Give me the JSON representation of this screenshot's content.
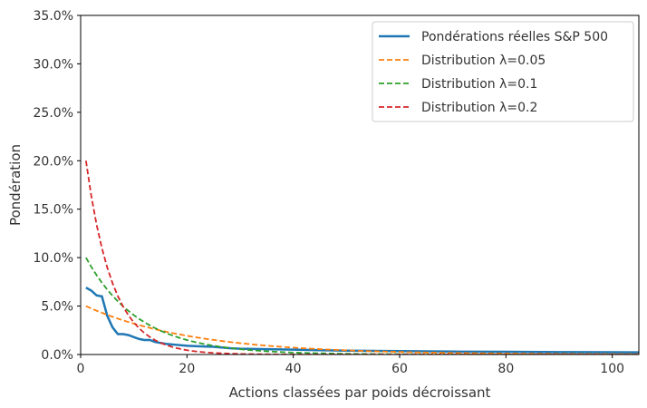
{
  "chart_data": {
    "type": "line",
    "xlabel": "Actions classées par poids décroissant",
    "ylabel": "Pondération",
    "xlim": [
      0,
      105
    ],
    "ylim": [
      0,
      0.35
    ],
    "x_ticks": [
      0,
      20,
      40,
      60,
      80,
      100
    ],
    "y_ticks": [
      0,
      0.05,
      0.1,
      0.15,
      0.2,
      0.25,
      0.3,
      0.35
    ],
    "y_tick_labels": [
      "0.0%",
      "5.0%",
      "10.0%",
      "15.0%",
      "20.0%",
      "25.0%",
      "30.0%",
      "35.0%"
    ],
    "grid": false,
    "legend_position": "top-right",
    "series": [
      {
        "name": "Pondérations réelles S&P 500",
        "color": "#1f77b4",
        "style": "solid",
        "points": [
          [
            1,
            0.069
          ],
          [
            2,
            0.066
          ],
          [
            3,
            0.061
          ],
          [
            4,
            0.06
          ],
          [
            5,
            0.04
          ],
          [
            6,
            0.028
          ],
          [
            7,
            0.021
          ],
          [
            8,
            0.021
          ],
          [
            9,
            0.02
          ],
          [
            10,
            0.018
          ],
          [
            11,
            0.016
          ],
          [
            12,
            0.015
          ],
          [
            13,
            0.015
          ],
          [
            14,
            0.013
          ],
          [
            15,
            0.012
          ],
          [
            16,
            0.011
          ],
          [
            18,
            0.01
          ],
          [
            20,
            0.009
          ],
          [
            22,
            0.0085
          ],
          [
            25,
            0.008
          ],
          [
            28,
            0.0065
          ],
          [
            30,
            0.006
          ],
          [
            35,
            0.0055
          ],
          [
            40,
            0.005
          ],
          [
            45,
            0.0045
          ],
          [
            50,
            0.004
          ],
          [
            60,
            0.0035
          ],
          [
            70,
            0.003
          ],
          [
            80,
            0.0028
          ],
          [
            90,
            0.0025
          ],
          [
            100,
            0.0023
          ],
          [
            105,
            0.0022
          ]
        ]
      },
      {
        "name": "Distribution λ=0.05",
        "color": "#ff7f0e",
        "style": "dashed",
        "lambda": 0.05,
        "x_range": [
          1,
          105
        ]
      },
      {
        "name": "Distribution λ=0.1",
        "color": "#2ca02c",
        "style": "dashed",
        "lambda": 0.1,
        "x_range": [
          1,
          105
        ]
      },
      {
        "name": "Distribution λ=0.2",
        "color": "#d62728",
        "style": "dashed",
        "lambda": 0.2,
        "x_range": [
          1,
          105
        ]
      }
    ]
  }
}
